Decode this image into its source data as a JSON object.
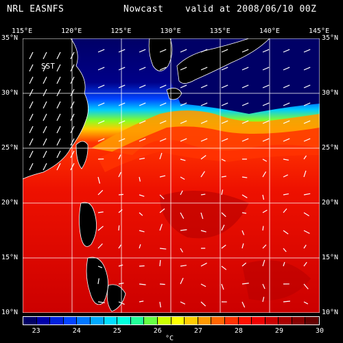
{
  "title": {
    "source": "NRL EASNFS",
    "product": "Nowcast",
    "valid": "valid at 2008/06/10 00Z"
  },
  "variable_label": "SST",
  "unit": "°C",
  "map": {
    "lon_labels": [
      "115°E",
      "120°E",
      "125°E",
      "130°E",
      "135°E",
      "140°E",
      "145°E"
    ],
    "lat_labels": [
      "35°N",
      "30°N",
      "25°N",
      "20°N",
      "15°N",
      "10°N"
    ],
    "lon_range": [
      115,
      145
    ],
    "lat_range": [
      10,
      35
    ],
    "land_color": "#000000",
    "coast_color": "#ffffff",
    "grid_color": "#ffffff"
  },
  "colorbar": {
    "colors": [
      "#000066",
      "#0000aa",
      "#0022dd",
      "#0044ff",
      "#0077ff",
      "#00aaff",
      "#00ddff",
      "#00ffdd",
      "#22ff99",
      "#66ff44",
      "#ccff00",
      "#ffff00",
      "#ffcc00",
      "#ff9900",
      "#ff6600",
      "#ff3300",
      "#ff1100",
      "#ee0000",
      "#cc0000",
      "#aa0000",
      "#880000",
      "#660000"
    ],
    "tick_labels": [
      "23",
      "24",
      "25",
      "26",
      "27",
      "28",
      "29",
      "30"
    ]
  }
}
